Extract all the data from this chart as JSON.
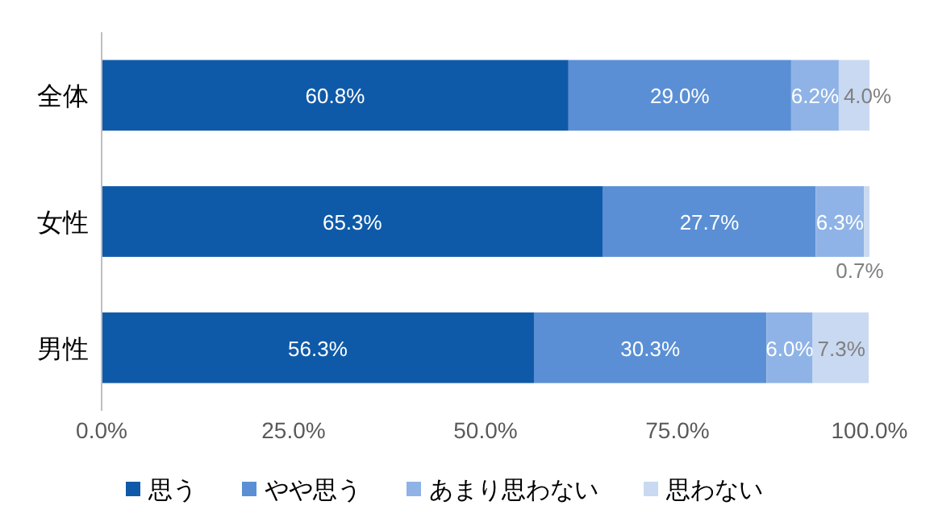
{
  "chart_data": {
    "type": "bar",
    "orientation": "horizontal",
    "stacked": true,
    "categories": [
      "全体",
      "女性",
      "男性"
    ],
    "series": [
      {
        "name": "思う",
        "color": "#0f5aa8",
        "values": [
          60.8,
          65.3,
          56.3
        ],
        "value_labels": [
          "60.8%",
          "65.3%",
          "56.3%"
        ]
      },
      {
        "name": "やや思う",
        "color": "#5a8fd5",
        "values": [
          29.0,
          27.7,
          30.3
        ],
        "value_labels": [
          "29.0%",
          "27.7%",
          "30.3%"
        ]
      },
      {
        "name": "あまり思わない",
        "color": "#8fb3e6",
        "values": [
          6.2,
          6.3,
          6.0
        ],
        "value_labels": [
          "6.2%",
          "6.3%",
          "6.0%"
        ]
      },
      {
        "name": "思わない",
        "color": "#c9d9f1",
        "values": [
          4.0,
          0.7,
          7.3
        ],
        "value_labels": [
          "4.0%",
          "0.7%",
          "7.3%"
        ]
      }
    ],
    "xlim": [
      0,
      100
    ],
    "xticks": [
      {
        "value": 0,
        "label": "0.0%"
      },
      {
        "value": 25,
        "label": "25.0%"
      },
      {
        "value": 50,
        "label": "50.0%"
      },
      {
        "value": 75,
        "label": "75.0%"
      },
      {
        "value": 100,
        "label": "100.0%"
      }
    ],
    "legend": "bottom"
  }
}
